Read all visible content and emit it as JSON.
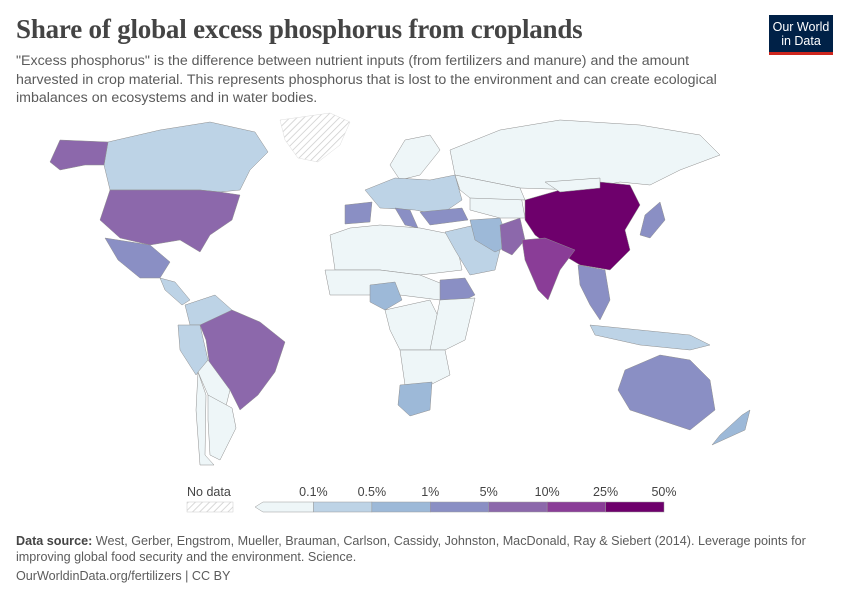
{
  "title": "Share of global excess phosphorus from croplands",
  "subtitle": "\"Excess phosphorus\" is the difference between nutrient inputs (from fertilizers and manure) and the amount harvested in crop material. This represents phosphorus that is lost to the environment and can create ecological imbalances on ecosystems and in water bodies.",
  "logo": {
    "line1": "Our World",
    "line2": "in Data",
    "bg": "#002147",
    "accent": "#ce261e"
  },
  "footer": {
    "source_label": "Data source:",
    "source_text": "West, Gerber, Engstrom, Mueller, Brauman, Carlson, Cassidy, Johnston, MacDonald, Ray & Siebert (2014). Leverage points for improving global food security and the environment. Science.",
    "link": "OurWorldinData.org/fertilizers | CC BY"
  },
  "chart_data": {
    "type": "choropleth",
    "legend": {
      "no_data_label": "No data",
      "ticks": [
        "0.1%",
        "0.5%",
        "1%",
        "5%",
        "10%",
        "25%",
        "50%"
      ],
      "colors": [
        "#eef6f8",
        "#bdd3e6",
        "#9db9d8",
        "#8a8fc4",
        "#8c68ab",
        "#8a3d97",
        "#6e006c"
      ],
      "no_data_color": "#e6e6e6"
    },
    "countries": [
      {
        "name": "Greenland",
        "bin": -1
      },
      {
        "name": "Canada",
        "bin": 1
      },
      {
        "name": "Alaska (United States)",
        "bin": 4
      },
      {
        "name": "United States",
        "bin": 4
      },
      {
        "name": "Mexico",
        "bin": 3
      },
      {
        "name": "Central America",
        "bin": 1
      },
      {
        "name": "Colombia/Venezuela",
        "bin": 1
      },
      {
        "name": "Peru",
        "bin": 1
      },
      {
        "name": "Brazil",
        "bin": 4
      },
      {
        "name": "Bolivia/Paraguay",
        "bin": 0
      },
      {
        "name": "Argentina",
        "bin": 0
      },
      {
        "name": "Chile",
        "bin": 0
      },
      {
        "name": "Russia",
        "bin": 0
      },
      {
        "name": "Scandinavia",
        "bin": 0
      },
      {
        "name": "Western Europe",
        "bin": 1
      },
      {
        "name": "Spain",
        "bin": 3
      },
      {
        "name": "Italy",
        "bin": 3
      },
      {
        "name": "Turkey",
        "bin": 3
      },
      {
        "name": "North Africa",
        "bin": 0
      },
      {
        "name": "Sahel",
        "bin": 0
      },
      {
        "name": "Nigeria",
        "bin": 2
      },
      {
        "name": "Central Africa",
        "bin": 0
      },
      {
        "name": "Ethiopia",
        "bin": 3
      },
      {
        "name": "East Africa",
        "bin": 0
      },
      {
        "name": "Southern Africa",
        "bin": 0
      },
      {
        "name": "South Africa",
        "bin": 2
      },
      {
        "name": "Middle East",
        "bin": 1
      },
      {
        "name": "Iran",
        "bin": 2
      },
      {
        "name": "Pakistan",
        "bin": 4
      },
      {
        "name": "Central Asia",
        "bin": 0
      },
      {
        "name": "Kazakhstan",
        "bin": 0
      },
      {
        "name": "China",
        "bin": 6
      },
      {
        "name": "Mongolia",
        "bin": 0
      },
      {
        "name": "India",
        "bin": 5
      },
      {
        "name": "Southeast Asia",
        "bin": 3
      },
      {
        "name": "Japan",
        "bin": 3
      },
      {
        "name": "Indonesia",
        "bin": 1
      },
      {
        "name": "Australia",
        "bin": 3
      },
      {
        "name": "New Zealand",
        "bin": 2
      }
    ]
  }
}
